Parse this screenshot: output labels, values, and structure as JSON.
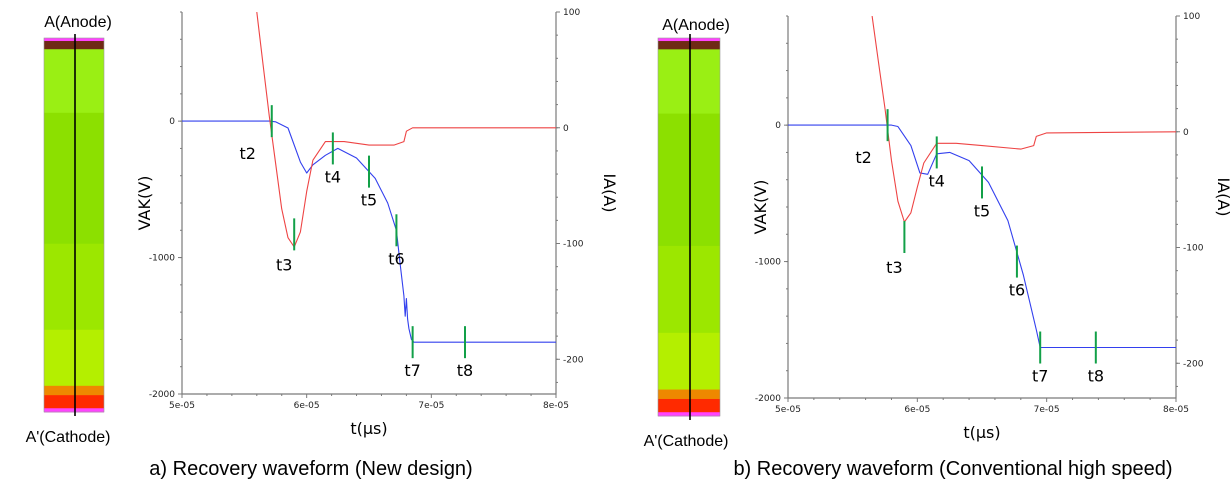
{
  "colors": {
    "voltage_line": "#3340ee",
    "current_line": "#ee4444",
    "time_marker": "#12a048",
    "frame": "#7a7a7a"
  },
  "structure": {
    "top_label": "A(Anode)",
    "bottom_label": "A'(Cathode)",
    "colors": [
      "#ff44ff",
      "#6f2a15",
      "#9aef14",
      "#8ce000",
      "#9ce700",
      "#b4ef00",
      "#d2f400",
      "#ee8800",
      "#ff2a00",
      "#ff44ff"
    ]
  },
  "chart_data": [
    {
      "type": "line",
      "caption": "a) Recovery waveform (New design)",
      "xlabel": "t(μs)",
      "ylabel": "VAK(V)",
      "y2label": "IA(A)",
      "xlim": [
        5e-05,
        8e-05
      ],
      "xticks": [
        "5e-05",
        "6e-05",
        "7e-05",
        "8e-05"
      ],
      "ylim": [
        -2000,
        800
      ],
      "yticks": [
        "-2000",
        "-1000",
        "0"
      ],
      "y2lim": [
        -230,
        100
      ],
      "y2ticks": [
        "-200",
        "-100",
        "0",
        "100"
      ],
      "series": [
        {
          "axis": "left",
          "color_key": "voltage_line",
          "x": [
            5e-05,
            5.5e-05,
            5.7e-05,
            5.75e-05,
            5.85e-05,
            5.95e-05,
            6e-05,
            6.05e-05,
            6.15e-05,
            6.25e-05,
            6.4e-05,
            6.55e-05,
            6.65e-05,
            6.72e-05,
            6.75e-05,
            6.78e-05,
            6.79e-05,
            6.8e-05,
            6.81e-05,
            6.82e-05,
            6.84e-05,
            6.86e-05,
            7e-05,
            7.5e-05,
            8e-05
          ],
          "y": [
            0,
            0,
            0,
            -5,
            -50,
            -300,
            -380,
            -320,
            -250,
            -200,
            -270,
            -420,
            -600,
            -800,
            -1050,
            -1280,
            -1430,
            -1300,
            -1450,
            -1520,
            -1600,
            -1620,
            -1620,
            -1620,
            -1620
          ]
        },
        {
          "axis": "right",
          "color_key": "current_line",
          "x": [
            5.6e-05,
            5.65e-05,
            5.7e-05,
            5.75e-05,
            5.8e-05,
            5.85e-05,
            5.9e-05,
            5.95e-05,
            6e-05,
            6.05e-05,
            6.15e-05,
            6.3e-05,
            6.5e-05,
            6.7e-05,
            6.78e-05,
            6.8e-05,
            6.85e-05,
            7e-05,
            8e-05
          ],
          "y": [
            100,
            55,
            10,
            -30,
            -70,
            -95,
            -103,
            -90,
            -55,
            -28,
            -12,
            -12,
            -15,
            -15,
            -12,
            -3,
            0,
            0,
            0
          ]
        }
      ],
      "markers": [
        {
          "label": "t2",
          "x": 5.72e-05,
          "y": 0
        },
        {
          "label": "t3",
          "x": 5.9e-05,
          "y": -830
        },
        {
          "label": "t4",
          "x": 6.21e-05,
          "y": -200
        },
        {
          "label": "t5",
          "x": 6.5e-05,
          "y": -370
        },
        {
          "label": "t6",
          "x": 6.72e-05,
          "y": -800
        },
        {
          "label": "t7",
          "x": 6.85e-05,
          "y": -1620
        },
        {
          "label": "t8",
          "x": 7.27e-05,
          "y": -1620
        }
      ]
    },
    {
      "type": "line",
      "caption": "b) Recovery waveform (Conventional high speed)",
      "xlabel": "t(μs)",
      "ylabel": "VAK(V)",
      "y2label": "IA(A)",
      "xlim": [
        5e-05,
        8e-05
      ],
      "xticks": [
        "5e-05",
        "6e-05",
        "7e-05",
        "8e-05"
      ],
      "ylim": [
        -2000,
        800
      ],
      "yticks": [
        "-2000",
        "-1000",
        "0"
      ],
      "y2lim": [
        -230,
        100
      ],
      "y2ticks": [
        "-200",
        "-100",
        "0",
        "100"
      ],
      "series": [
        {
          "axis": "left",
          "color_key": "voltage_line",
          "x": [
            5e-05,
            5.5e-05,
            5.8e-05,
            5.85e-05,
            5.95e-05,
            6.02e-05,
            6.08e-05,
            6.15e-05,
            6.25e-05,
            6.4e-05,
            6.55e-05,
            6.7e-05,
            6.82e-05,
            6.92e-05,
            6.95e-05,
            7e-05,
            7.5e-05,
            8e-05
          ],
          "y": [
            0,
            0,
            0,
            -10,
            -150,
            -350,
            -360,
            -210,
            -200,
            -260,
            -420,
            -700,
            -1100,
            -1500,
            -1630,
            -1630,
            -1630,
            -1630
          ]
        },
        {
          "axis": "right",
          "color_key": "current_line",
          "x": [
            5.65e-05,
            5.7e-05,
            5.75e-05,
            5.8e-05,
            5.85e-05,
            5.9e-05,
            5.95e-05,
            6e-05,
            6.05e-05,
            6.15e-05,
            6.3e-05,
            6.5e-05,
            6.8e-05,
            6.9e-05,
            6.92e-05,
            7e-05,
            8e-05
          ],
          "y": [
            100,
            60,
            20,
            -25,
            -60,
            -78,
            -70,
            -48,
            -27,
            -10,
            -10,
            -12,
            -15,
            -12,
            -4,
            -1,
            0
          ]
        }
      ],
      "markers": [
        {
          "label": "t2",
          "x": 5.77e-05,
          "y": 0
        },
        {
          "label": "t3",
          "x": 5.9e-05,
          "y": -820
        },
        {
          "label": "t4",
          "x": 6.15e-05,
          "y": -200
        },
        {
          "label": "t5",
          "x": 6.5e-05,
          "y": -420
        },
        {
          "label": "t6",
          "x": 6.77e-05,
          "y": -1000
        },
        {
          "label": "t7",
          "x": 6.95e-05,
          "y": -1630
        },
        {
          "label": "t8",
          "x": 7.38e-05,
          "y": -1630
        }
      ]
    }
  ]
}
